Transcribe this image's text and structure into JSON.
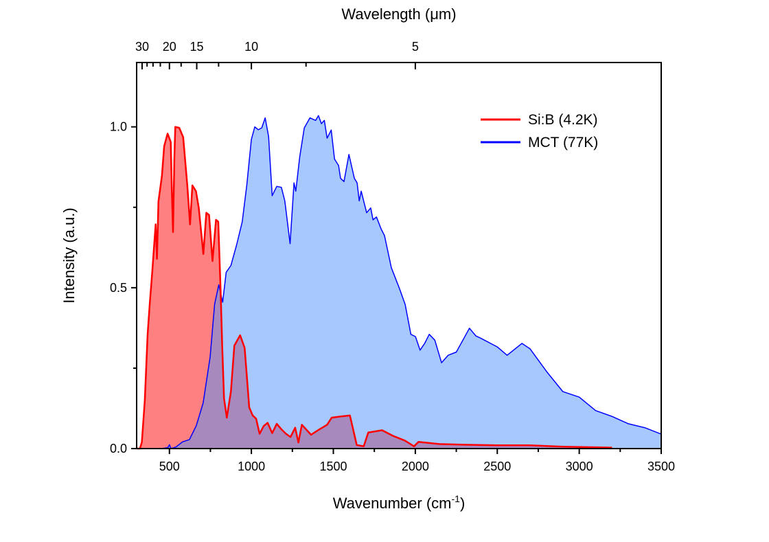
{
  "chart_data": {
    "type": "area",
    "title": "",
    "xlabel": "Wavenumber (cm",
    "xlabel_sup": "-1",
    "xlabel_close": ")",
    "ylabel": "Intensity (a.u.)",
    "top_xlabel": "Wavelength (μm)",
    "xlim": [
      300,
      3500
    ],
    "ylim": [
      0,
      1.2
    ],
    "x_ticks": [
      500,
      1000,
      1500,
      2000,
      2500,
      3000,
      3500
    ],
    "x_tick_labels": [
      "500",
      "1000",
      "1500",
      "2000",
      "2500",
      "3000",
      "3500"
    ],
    "x_minor_ticks": [
      750,
      1250,
      1750,
      2250,
      2750,
      3250
    ],
    "y_ticks": [
      0,
      0.5,
      1.0
    ],
    "y_tick_labels": [
      "0.0",
      "0.5",
      "1.0"
    ],
    "y_minor_ticks": [
      0.25,
      0.75
    ],
    "top_ticks_um": [
      30,
      20,
      15,
      10,
      5
    ],
    "top_tick_labels": [
      "30",
      "20",
      "15",
      "10",
      "5"
    ],
    "top_minor_ticks_um": [
      27.5,
      25,
      22.5,
      17.5,
      12.5,
      7.5
    ],
    "legend_position": "top-right",
    "grid": false,
    "series": [
      {
        "name": "Si:B (4.2K)",
        "line_color": "#ff0000",
        "fill_color": "#ff8080",
        "x": [
          300,
          320,
          332,
          350,
          367,
          380,
          395,
          405,
          416,
          424,
          433,
          454,
          468,
          489,
          508,
          515,
          522,
          530,
          536,
          560,
          584,
          609,
          626,
          640,
          662,
          679,
          707,
          725,
          742,
          763,
          784,
          798,
          812,
          822,
          833,
          850,
          875,
          896,
          931,
          959,
          987,
          1008,
          1029,
          1050,
          1075,
          1099,
          1127,
          1155,
          1183,
          1211,
          1239,
          1267,
          1287,
          1308,
          1364,
          1406,
          1462,
          1490,
          1545,
          1601,
          1622,
          1643,
          1685,
          1713,
          1797,
          1866,
          1936,
          1992,
          2020,
          2145,
          2300,
          2500,
          2700,
          2900,
          3100,
          3200
        ],
        "y": [
          0.0,
          0.0,
          0.02,
          0.15,
          0.355,
          0.45,
          0.548,
          0.62,
          0.697,
          0.59,
          0.769,
          0.847,
          0.94,
          0.979,
          0.953,
          0.8,
          0.673,
          0.9,
          1.0,
          0.997,
          0.968,
          0.818,
          0.697,
          0.818,
          0.8,
          0.748,
          0.605,
          0.733,
          0.726,
          0.583,
          0.711,
          0.705,
          0.498,
          0.32,
          0.156,
          0.096,
          0.177,
          0.32,
          0.352,
          0.313,
          0.128,
          0.103,
          0.093,
          0.046,
          0.07,
          0.08,
          0.048,
          0.077,
          0.06,
          0.046,
          0.036,
          0.065,
          0.019,
          0.074,
          0.043,
          0.057,
          0.074,
          0.096,
          0.1,
          0.103,
          0.057,
          0.011,
          0.007,
          0.05,
          0.057,
          0.039,
          0.025,
          0.007,
          0.021,
          0.014,
          0.012,
          0.01,
          0.01,
          0.006,
          0.004,
          0.003
        ]
      },
      {
        "name": "MCT (77K)",
        "line_color": "#0000ff",
        "fill_color": "#a8c8fc",
        "x": [
          300,
          450,
          490,
          500,
          510,
          540,
          580,
          622,
          664,
          706,
          748,
          776,
          801,
          825,
          846,
          875,
          910,
          944,
          972,
          1000,
          1021,
          1042,
          1063,
          1084,
          1105,
          1127,
          1155,
          1183,
          1204,
          1236,
          1260,
          1271,
          1295,
          1323,
          1357,
          1392,
          1409,
          1427,
          1445,
          1462,
          1487,
          1507,
          1532,
          1544,
          1565,
          1595,
          1628,
          1645,
          1658,
          1670,
          1703,
          1728,
          1742,
          1763,
          1791,
          1812,
          1854,
          1903,
          1938,
          1973,
          2001,
          2029,
          2057,
          2085,
          2119,
          2160,
          2200,
          2250,
          2330,
          2370,
          2400,
          2500,
          2560,
          2650,
          2700,
          2800,
          2900,
          3000,
          3100,
          3200,
          3300,
          3400,
          3500
        ],
        "y": [
          0.0,
          0.0,
          0.003,
          0.012,
          0.0,
          0.005,
          0.021,
          0.028,
          0.071,
          0.142,
          0.284,
          0.449,
          0.509,
          0.455,
          0.548,
          0.569,
          0.633,
          0.705,
          0.818,
          0.961,
          1.0,
          0.991,
          0.997,
          1.028,
          0.97,
          0.786,
          0.815,
          0.812,
          0.77,
          0.637,
          0.826,
          0.8,
          0.908,
          0.997,
          1.028,
          1.02,
          1.035,
          1.01,
          1.02,
          0.965,
          0.99,
          0.9,
          0.88,
          0.84,
          0.83,
          0.914,
          0.84,
          0.826,
          0.77,
          0.8,
          0.733,
          0.748,
          0.711,
          0.72,
          0.683,
          0.662,
          0.562,
          0.498,
          0.448,
          0.355,
          0.348,
          0.306,
          0.327,
          0.355,
          0.337,
          0.267,
          0.29,
          0.3,
          0.374,
          0.35,
          0.343,
          0.316,
          0.29,
          0.327,
          0.31,
          0.24,
          0.177,
          0.16,
          0.118,
          0.1,
          0.077,
          0.065,
          0.045
        ]
      }
    ]
  }
}
